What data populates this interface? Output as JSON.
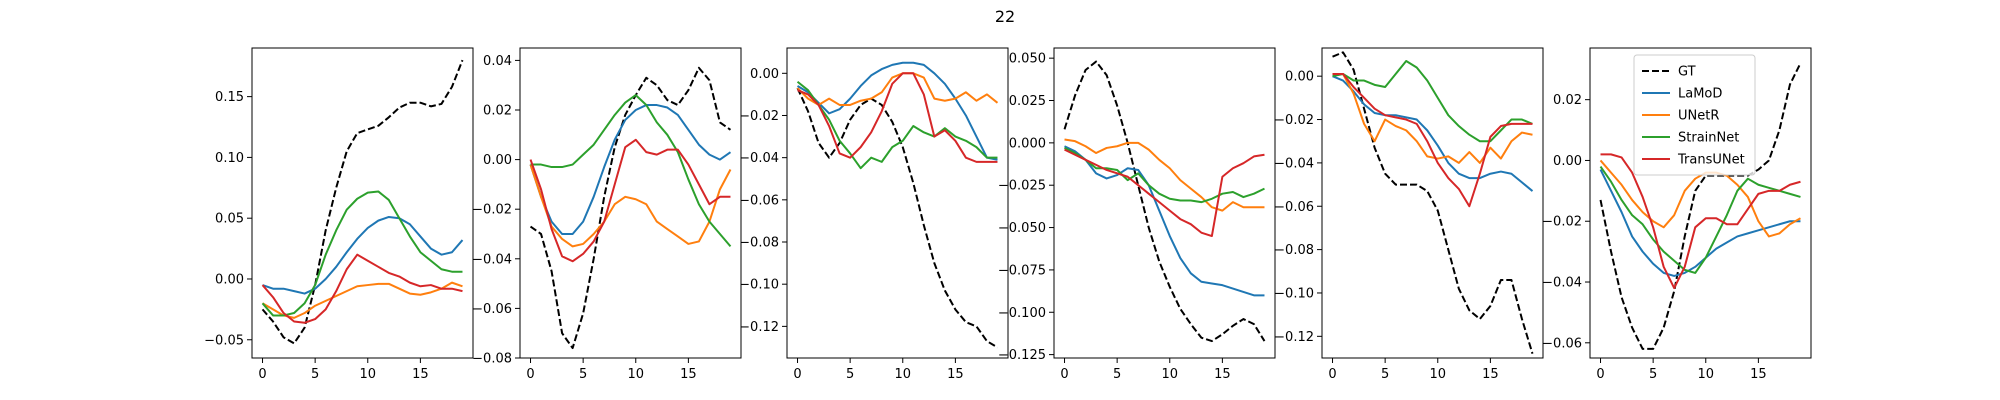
{
  "figure": {
    "title": "22"
  },
  "legend": {
    "placement": "upper-center of last panel",
    "entries": [
      {
        "name": "GT",
        "color": "#000000",
        "dashed": true
      },
      {
        "name": "LaMoD",
        "color": "#1f77b4",
        "dashed": false
      },
      {
        "name": "UNetR",
        "color": "#ff7f0e",
        "dashed": false
      },
      {
        "name": "StrainNet",
        "color": "#2ca02c",
        "dashed": false
      },
      {
        "name": "TransUNet",
        "color": "#d62728",
        "dashed": false
      }
    ]
  },
  "chart_data": [
    {
      "type": "line",
      "xlim": [
        -1,
        20
      ],
      "ylim": [
        -0.065,
        0.19
      ],
      "xticks": [
        0,
        5,
        10,
        15
      ],
      "xtick_labels": [
        "0",
        "5",
        "10",
        "15"
      ],
      "yticks": [
        -0.05,
        0.0,
        0.05,
        0.1,
        0.15
      ],
      "ytick_labels": [
        "−0.05",
        "0.00",
        "0.05",
        "0.10",
        "0.15"
      ],
      "x": [
        0,
        1,
        2,
        3,
        4,
        5,
        6,
        7,
        8,
        9,
        10,
        11,
        12,
        13,
        14,
        15,
        16,
        17,
        18,
        19
      ],
      "series": [
        {
          "name": "GT",
          "values": [
            -0.025,
            -0.035,
            -0.048,
            -0.053,
            -0.04,
            -0.005,
            0.04,
            0.075,
            0.105,
            0.12,
            0.123,
            0.126,
            0.133,
            0.141,
            0.145,
            0.145,
            0.142,
            0.144,
            0.158,
            0.18
          ]
        },
        {
          "name": "LaMoD",
          "values": [
            -0.005,
            -0.008,
            -0.008,
            -0.01,
            -0.012,
            -0.008,
            0.0,
            0.01,
            0.022,
            0.033,
            0.042,
            0.048,
            0.051,
            0.05,
            0.045,
            0.035,
            0.025,
            0.02,
            0.022,
            0.032
          ]
        },
        {
          "name": "UNetR",
          "values": [
            -0.02,
            -0.025,
            -0.03,
            -0.032,
            -0.028,
            -0.022,
            -0.018,
            -0.014,
            -0.01,
            -0.006,
            -0.005,
            -0.004,
            -0.004,
            -0.008,
            -0.012,
            -0.013,
            -0.011,
            -0.008,
            -0.003,
            -0.006
          ]
        },
        {
          "name": "StrainNet",
          "values": [
            -0.02,
            -0.03,
            -0.03,
            -0.028,
            -0.02,
            -0.005,
            0.02,
            0.04,
            0.057,
            0.066,
            0.071,
            0.072,
            0.065,
            0.05,
            0.035,
            0.022,
            0.015,
            0.008,
            0.006,
            0.006
          ]
        },
        {
          "name": "TransUNet",
          "values": [
            -0.005,
            -0.015,
            -0.028,
            -0.035,
            -0.036,
            -0.033,
            -0.025,
            -0.01,
            0.008,
            0.02,
            0.015,
            0.01,
            0.005,
            0.002,
            -0.003,
            -0.006,
            -0.005,
            -0.008,
            -0.008,
            -0.01
          ]
        }
      ]
    },
    {
      "type": "line",
      "xlim": [
        -1,
        20
      ],
      "ylim": [
        -0.08,
        0.045
      ],
      "xticks": [
        0,
        5,
        10,
        15
      ],
      "xtick_labels": [
        "0",
        "5",
        "10",
        "15"
      ],
      "yticks": [
        -0.08,
        -0.06,
        -0.04,
        -0.02,
        0.0,
        0.02,
        0.04
      ],
      "ytick_labels": [
        "−0.08",
        "−0.06",
        "−0.04",
        "−0.02",
        "0.00",
        "0.02",
        "0.04"
      ],
      "x": [
        0,
        1,
        2,
        3,
        4,
        5,
        6,
        7,
        8,
        9,
        10,
        11,
        12,
        13,
        14,
        15,
        16,
        17,
        18,
        19
      ],
      "series": [
        {
          "name": "GT",
          "values": [
            -0.027,
            -0.03,
            -0.045,
            -0.07,
            -0.076,
            -0.062,
            -0.04,
            -0.015,
            0.005,
            0.018,
            0.026,
            0.033,
            0.03,
            0.024,
            0.022,
            0.028,
            0.037,
            0.032,
            0.015,
            0.012
          ]
        },
        {
          "name": "LaMoD",
          "values": [
            -0.002,
            -0.015,
            -0.025,
            -0.03,
            -0.03,
            -0.025,
            -0.015,
            -0.003,
            0.008,
            0.016,
            0.02,
            0.022,
            0.022,
            0.021,
            0.018,
            0.012,
            0.006,
            0.002,
            0.0,
            0.003
          ]
        },
        {
          "name": "UNetR",
          "values": [
            -0.002,
            -0.015,
            -0.027,
            -0.032,
            -0.035,
            -0.034,
            -0.03,
            -0.025,
            -0.018,
            -0.015,
            -0.016,
            -0.018,
            -0.025,
            -0.028,
            -0.031,
            -0.034,
            -0.033,
            -0.025,
            -0.012,
            -0.004
          ]
        },
        {
          "name": "StrainNet",
          "values": [
            -0.002,
            -0.002,
            -0.003,
            -0.003,
            -0.002,
            0.002,
            0.006,
            0.012,
            0.018,
            0.023,
            0.026,
            0.022,
            0.015,
            0.01,
            0.003,
            -0.008,
            -0.018,
            -0.025,
            -0.03,
            -0.035
          ]
        },
        {
          "name": "TransUNet",
          "values": [
            0.0,
            -0.012,
            -0.028,
            -0.039,
            -0.041,
            -0.038,
            -0.033,
            -0.025,
            -0.01,
            0.005,
            0.008,
            0.003,
            0.002,
            0.004,
            0.004,
            -0.002,
            -0.01,
            -0.018,
            -0.015,
            -0.015
          ]
        }
      ]
    },
    {
      "type": "line",
      "xlim": [
        -1,
        20
      ],
      "ylim": [
        -0.135,
        0.012
      ],
      "xticks": [
        0,
        5,
        10,
        15
      ],
      "xtick_labels": [
        "0",
        "5",
        "10",
        "15"
      ],
      "yticks": [
        -0.12,
        -0.1,
        -0.08,
        -0.06,
        -0.04,
        -0.02,
        0.0
      ],
      "ytick_labels": [
        "−0.12",
        "−0.10",
        "−0.08",
        "−0.06",
        "−0.04",
        "−0.02",
        "0.00"
      ],
      "x": [
        0,
        1,
        2,
        3,
        4,
        5,
        6,
        7,
        8,
        9,
        10,
        11,
        12,
        13,
        14,
        15,
        16,
        17,
        18,
        19
      ],
      "series": [
        {
          "name": "GT",
          "values": [
            -0.007,
            -0.018,
            -0.033,
            -0.04,
            -0.033,
            -0.022,
            -0.015,
            -0.012,
            -0.015,
            -0.023,
            -0.035,
            -0.052,
            -0.072,
            -0.09,
            -0.103,
            -0.112,
            -0.118,
            -0.12,
            -0.127,
            -0.13
          ]
        },
        {
          "name": "LaMoD",
          "values": [
            -0.006,
            -0.009,
            -0.014,
            -0.019,
            -0.017,
            -0.012,
            -0.006,
            -0.001,
            0.002,
            0.004,
            0.005,
            0.005,
            0.004,
            0.0,
            -0.005,
            -0.012,
            -0.02,
            -0.03,
            -0.04,
            -0.041
          ]
        },
        {
          "name": "UNetR",
          "values": [
            -0.007,
            -0.012,
            -0.015,
            -0.012,
            -0.015,
            -0.015,
            -0.013,
            -0.012,
            -0.009,
            -0.002,
            0.0,
            0.0,
            -0.002,
            -0.012,
            -0.013,
            -0.012,
            -0.009,
            -0.013,
            -0.01,
            -0.014
          ]
        },
        {
          "name": "StrainNet",
          "values": [
            -0.004,
            -0.008,
            -0.015,
            -0.022,
            -0.032,
            -0.038,
            -0.045,
            -0.04,
            -0.042,
            -0.035,
            -0.032,
            -0.025,
            -0.028,
            -0.03,
            -0.026,
            -0.03,
            -0.032,
            -0.035,
            -0.04,
            -0.04
          ]
        },
        {
          "name": "TransUNet",
          "values": [
            -0.008,
            -0.01,
            -0.015,
            -0.025,
            -0.038,
            -0.04,
            -0.035,
            -0.028,
            -0.018,
            -0.005,
            0.0,
            0.0,
            -0.01,
            -0.03,
            -0.027,
            -0.032,
            -0.04,
            -0.042,
            -0.042,
            -0.042
          ]
        }
      ]
    },
    {
      "type": "line",
      "xlim": [
        -1,
        20
      ],
      "ylim": [
        -0.127,
        0.056
      ],
      "xticks": [
        0,
        5,
        10,
        15
      ],
      "xtick_labels": [
        "0",
        "5",
        "10",
        "15"
      ],
      "yticks": [
        -0.125,
        -0.1,
        -0.075,
        -0.05,
        -0.025,
        0.0,
        0.025,
        0.05
      ],
      "ytick_labels": [
        "−0.125",
        "−0.100",
        "−0.075",
        "−0.050",
        "−0.025",
        "0.000",
        "0.025",
        "0.050"
      ],
      "x": [
        0,
        1,
        2,
        3,
        4,
        5,
        6,
        7,
        8,
        9,
        10,
        11,
        12,
        13,
        14,
        15,
        16,
        17,
        18,
        19
      ],
      "series": [
        {
          "name": "GT",
          "values": [
            0.008,
            0.028,
            0.043,
            0.048,
            0.04,
            0.022,
            0.0,
            -0.025,
            -0.05,
            -0.07,
            -0.085,
            -0.098,
            -0.107,
            -0.115,
            -0.117,
            -0.113,
            -0.108,
            -0.104,
            -0.107,
            -0.117
          ]
        },
        {
          "name": "LaMoD",
          "values": [
            -0.002,
            -0.005,
            -0.01,
            -0.018,
            -0.021,
            -0.019,
            -0.015,
            -0.016,
            -0.025,
            -0.04,
            -0.055,
            -0.068,
            -0.077,
            -0.082,
            -0.083,
            -0.084,
            -0.086,
            -0.088,
            -0.09,
            -0.09
          ]
        },
        {
          "name": "UNetR",
          "values": [
            0.002,
            0.001,
            -0.002,
            -0.006,
            -0.003,
            -0.002,
            0.0,
            0.0,
            -0.004,
            -0.01,
            -0.015,
            -0.022,
            -0.027,
            -0.032,
            -0.038,
            -0.04,
            -0.035,
            -0.038,
            -0.038,
            -0.038
          ]
        },
        {
          "name": "StrainNet",
          "values": [
            -0.003,
            -0.006,
            -0.01,
            -0.015,
            -0.015,
            -0.016,
            -0.022,
            -0.018,
            -0.025,
            -0.03,
            -0.033,
            -0.034,
            -0.034,
            -0.035,
            -0.033,
            -0.03,
            -0.029,
            -0.032,
            -0.03,
            -0.027
          ]
        },
        {
          "name": "TransUNet",
          "values": [
            -0.004,
            -0.007,
            -0.01,
            -0.013,
            -0.016,
            -0.018,
            -0.02,
            -0.025,
            -0.03,
            -0.035,
            -0.04,
            -0.045,
            -0.048,
            -0.053,
            -0.055,
            -0.02,
            -0.015,
            -0.012,
            -0.008,
            -0.007
          ]
        }
      ]
    },
    {
      "type": "line",
      "xlim": [
        -1,
        20
      ],
      "ylim": [
        -0.13,
        0.013
      ],
      "xticks": [
        0,
        5,
        10,
        15
      ],
      "xtick_labels": [
        "0",
        "5",
        "10",
        "15"
      ],
      "yticks": [
        -0.12,
        -0.1,
        -0.08,
        -0.06,
        -0.04,
        -0.02,
        0.0
      ],
      "ytick_labels": [
        "−0.12",
        "−0.10",
        "−0.08",
        "−0.06",
        "−0.04",
        "−0.02",
        "0.00"
      ],
      "x": [
        0,
        1,
        2,
        3,
        4,
        5,
        6,
        7,
        8,
        9,
        10,
        11,
        12,
        13,
        14,
        15,
        16,
        17,
        18,
        19
      ],
      "series": [
        {
          "name": "GT",
          "values": [
            0.009,
            0.011,
            0.003,
            -0.015,
            -0.033,
            -0.045,
            -0.05,
            -0.05,
            -0.05,
            -0.053,
            -0.062,
            -0.08,
            -0.098,
            -0.108,
            -0.112,
            -0.106,
            -0.094,
            -0.094,
            -0.112,
            -0.128
          ]
        },
        {
          "name": "LaMoD",
          "values": [
            0.0,
            -0.002,
            -0.007,
            -0.013,
            -0.017,
            -0.018,
            -0.018,
            -0.019,
            -0.02,
            -0.025,
            -0.032,
            -0.04,
            -0.045,
            -0.047,
            -0.047,
            -0.045,
            -0.044,
            -0.045,
            -0.049,
            -0.053
          ]
        },
        {
          "name": "UNetR",
          "values": [
            0.001,
            0.001,
            -0.008,
            -0.022,
            -0.03,
            -0.02,
            -0.023,
            -0.025,
            -0.03,
            -0.037,
            -0.038,
            -0.037,
            -0.04,
            -0.035,
            -0.04,
            -0.033,
            -0.038,
            -0.03,
            -0.026,
            -0.027
          ]
        },
        {
          "name": "StrainNet",
          "values": [
            0.0,
            0.001,
            -0.002,
            -0.002,
            -0.004,
            -0.005,
            0.001,
            0.007,
            0.004,
            -0.002,
            -0.01,
            -0.018,
            -0.023,
            -0.027,
            -0.03,
            -0.03,
            -0.025,
            -0.02,
            -0.02,
            -0.022
          ]
        },
        {
          "name": "TransUNet",
          "values": [
            0.001,
            0.001,
            -0.005,
            -0.01,
            -0.015,
            -0.018,
            -0.019,
            -0.02,
            -0.022,
            -0.03,
            -0.04,
            -0.047,
            -0.052,
            -0.06,
            -0.045,
            -0.028,
            -0.023,
            -0.022,
            -0.022,
            -0.022
          ]
        }
      ]
    },
    {
      "type": "line",
      "xlim": [
        -1,
        20
      ],
      "ylim": [
        -0.065,
        0.037
      ],
      "xticks": [
        0,
        5,
        10,
        15
      ],
      "xtick_labels": [
        "0",
        "5",
        "10",
        "15"
      ],
      "yticks": [
        -0.06,
        -0.04,
        -0.02,
        0.0,
        0.02
      ],
      "ytick_labels": [
        "−0.06",
        "−0.04",
        "−0.02",
        "0.00",
        "0.02"
      ],
      "x": [
        0,
        1,
        2,
        3,
        4,
        5,
        6,
        7,
        8,
        9,
        10,
        11,
        12,
        13,
        14,
        15,
        16,
        17,
        18,
        19
      ],
      "series": [
        {
          "name": "GT",
          "values": [
            -0.013,
            -0.03,
            -0.045,
            -0.055,
            -0.062,
            -0.062,
            -0.055,
            -0.043,
            -0.025,
            -0.01,
            -0.005,
            -0.005,
            -0.005,
            -0.005,
            -0.005,
            -0.003,
            0.0,
            0.01,
            0.025,
            0.032
          ]
        },
        {
          "name": "LaMoD",
          "values": [
            -0.003,
            -0.01,
            -0.017,
            -0.025,
            -0.03,
            -0.034,
            -0.037,
            -0.038,
            -0.037,
            -0.035,
            -0.032,
            -0.029,
            -0.027,
            -0.025,
            -0.024,
            -0.023,
            -0.022,
            -0.021,
            -0.02,
            -0.02
          ]
        },
        {
          "name": "UNetR",
          "values": [
            0.0,
            -0.004,
            -0.008,
            -0.013,
            -0.017,
            -0.02,
            -0.022,
            -0.018,
            -0.01,
            -0.006,
            -0.004,
            -0.004,
            -0.005,
            -0.008,
            -0.012,
            -0.02,
            -0.025,
            -0.024,
            -0.021,
            -0.019
          ]
        },
        {
          "name": "StrainNet",
          "values": [
            -0.002,
            -0.007,
            -0.013,
            -0.018,
            -0.021,
            -0.026,
            -0.03,
            -0.033,
            -0.036,
            -0.037,
            -0.032,
            -0.025,
            -0.018,
            -0.01,
            -0.006,
            -0.008,
            -0.009,
            -0.01,
            -0.011,
            -0.012
          ]
        },
        {
          "name": "TransUNet",
          "values": [
            0.002,
            0.002,
            0.001,
            -0.004,
            -0.012,
            -0.022,
            -0.035,
            -0.042,
            -0.035,
            -0.022,
            -0.019,
            -0.019,
            -0.021,
            -0.021,
            -0.016,
            -0.011,
            -0.01,
            -0.01,
            -0.008,
            -0.007
          ]
        }
      ]
    }
  ]
}
